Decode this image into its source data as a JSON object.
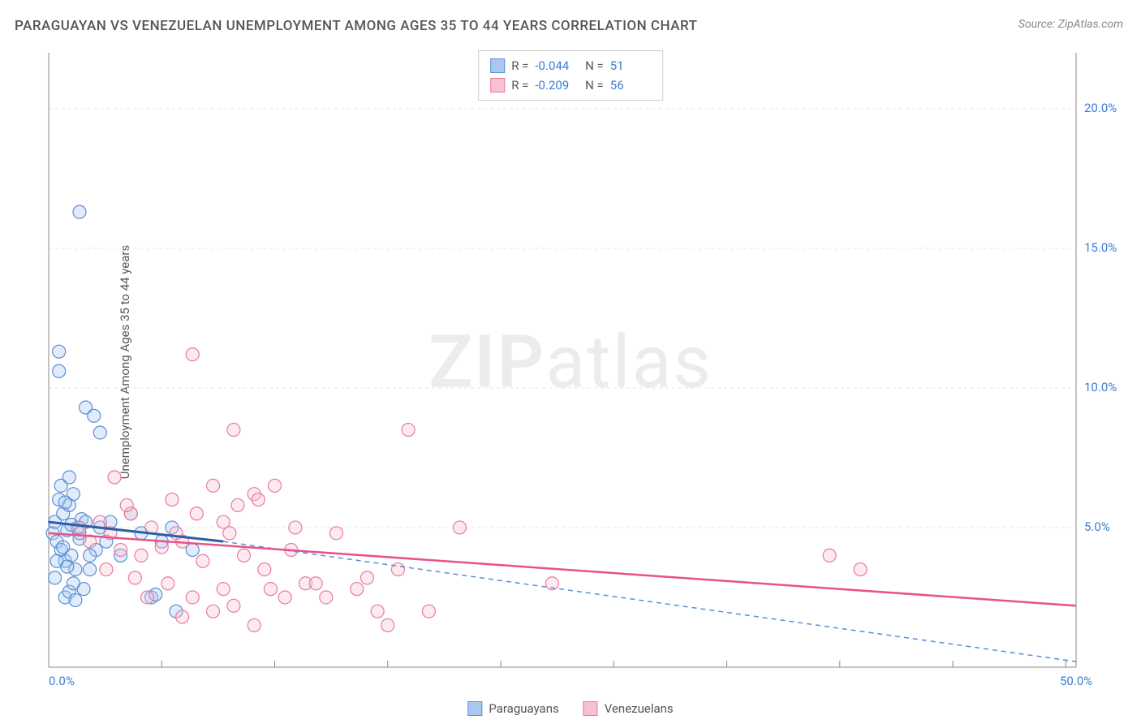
{
  "title": "PARAGUAYAN VS VENEZUELAN UNEMPLOYMENT AMONG AGES 35 TO 44 YEARS CORRELATION CHART",
  "source": "Source: ZipAtlas.com",
  "y_axis_label": "Unemployment Among Ages 35 to 44 years",
  "watermark_bold": "ZIP",
  "watermark_light": "atlas",
  "chart": {
    "type": "scatter",
    "background_color": "#ffffff",
    "grid_color": "#e5e5e5",
    "axis_color": "#888888",
    "xlim": [
      0,
      50
    ],
    "ylim": [
      0,
      22
    ],
    "x_ticks": [
      0,
      50
    ],
    "x_tick_labels": [
      "0.0%",
      "50.0%"
    ],
    "y_ticks": [
      5,
      10,
      15,
      20
    ],
    "y_tick_labels": [
      "5.0%",
      "10.0%",
      "15.0%",
      "20.0%"
    ],
    "x_grid_positions": [
      5.5,
      11,
      16.5,
      22,
      27.5,
      33,
      38.5,
      44,
      49.5
    ],
    "marker_radius": 8,
    "marker_fill_opacity": 0.35,
    "marker_stroke_width": 1.2,
    "series": [
      {
        "name": "Paraguayans",
        "color_fill": "#a8c8f0",
        "color_stroke": "#5a8fd6",
        "R": "-0.044",
        "N": "51",
        "regression": {
          "x1": 0,
          "y1": 5.2,
          "x2": 8.5,
          "y2": 4.5,
          "solid_color": "#2d5fa8",
          "dash_extend_to_x": 50,
          "dash_extend_to_y": 0.2,
          "dash_color": "#5a8fd6"
        },
        "points": [
          [
            0.2,
            4.8
          ],
          [
            0.3,
            5.2
          ],
          [
            0.4,
            4.5
          ],
          [
            0.5,
            6.0
          ],
          [
            0.6,
            4.2
          ],
          [
            0.7,
            5.5
          ],
          [
            0.8,
            3.8
          ],
          [
            0.9,
            4.9
          ],
          [
            1.0,
            5.8
          ],
          [
            1.1,
            4.0
          ],
          [
            1.2,
            6.2
          ],
          [
            1.3,
            3.5
          ],
          [
            1.4,
            5.0
          ],
          [
            1.5,
            4.6
          ],
          [
            1.6,
            5.3
          ],
          [
            0.5,
            11.3
          ],
          [
            0.5,
            10.6
          ],
          [
            1.5,
            16.3
          ],
          [
            1.8,
            9.3
          ],
          [
            2.5,
            8.4
          ],
          [
            2.2,
            9.0
          ],
          [
            0.8,
            2.5
          ],
          [
            1.0,
            2.7
          ],
          [
            1.3,
            2.4
          ],
          [
            1.7,
            2.8
          ],
          [
            2.0,
            3.5
          ],
          [
            2.3,
            4.2
          ],
          [
            2.5,
            5.0
          ],
          [
            2.8,
            4.5
          ],
          [
            3.0,
            5.2
          ],
          [
            3.5,
            4.0
          ],
          [
            4.0,
            5.5
          ],
          [
            4.5,
            4.8
          ],
          [
            5.0,
            2.5
          ],
          [
            5.2,
            2.6
          ],
          [
            5.5,
            4.5
          ],
          [
            6.0,
            5.0
          ],
          [
            6.2,
            2.0
          ],
          [
            7.0,
            4.2
          ],
          [
            0.3,
            3.2
          ],
          [
            0.4,
            3.8
          ],
          [
            0.6,
            6.5
          ],
          [
            0.8,
            5.9
          ],
          [
            1.0,
            6.8
          ],
          [
            1.2,
            3.0
          ],
          [
            1.5,
            4.8
          ],
          [
            1.8,
            5.2
          ],
          [
            2.0,
            4.0
          ],
          [
            0.7,
            4.3
          ],
          [
            0.9,
            3.6
          ],
          [
            1.1,
            5.1
          ]
        ]
      },
      {
        "name": "Venezuelans",
        "color_fill": "#f5c2d0",
        "color_stroke": "#e87ba0",
        "R": "-0.209",
        "N": "56",
        "regression": {
          "x1": 0,
          "y1": 4.8,
          "x2": 50,
          "y2": 2.2,
          "solid_color": "#e8518a"
        },
        "points": [
          [
            1.5,
            5.0
          ],
          [
            2.0,
            4.5
          ],
          [
            2.5,
            5.2
          ],
          [
            3.0,
            4.8
          ],
          [
            3.5,
            4.2
          ],
          [
            4.0,
            5.5
          ],
          [
            4.5,
            4.0
          ],
          [
            5.0,
            5.0
          ],
          [
            5.5,
            4.3
          ],
          [
            6.0,
            6.0
          ],
          [
            6.5,
            4.5
          ],
          [
            7.0,
            11.2
          ],
          [
            7.5,
            3.8
          ],
          [
            8.0,
            6.5
          ],
          [
            8.5,
            5.2
          ],
          [
            9.0,
            8.5
          ],
          [
            9.5,
            4.0
          ],
          [
            10.0,
            6.2
          ],
          [
            10.2,
            6.0
          ],
          [
            10.5,
            3.5
          ],
          [
            11.0,
            6.5
          ],
          [
            11.5,
            2.5
          ],
          [
            12.0,
            5.0
          ],
          [
            12.5,
            3.0
          ],
          [
            8.0,
            2.0
          ],
          [
            8.5,
            2.8
          ],
          [
            9.0,
            2.2
          ],
          [
            7.0,
            2.5
          ],
          [
            6.5,
            1.8
          ],
          [
            10.0,
            1.5
          ],
          [
            13.0,
            3.0
          ],
          [
            14.0,
            4.8
          ],
          [
            15.0,
            2.8
          ],
          [
            15.5,
            3.2
          ],
          [
            16.0,
            2.0
          ],
          [
            16.5,
            1.5
          ],
          [
            17.0,
            3.5
          ],
          [
            17.5,
            8.5
          ],
          [
            18.5,
            2.0
          ],
          [
            20.0,
            5.0
          ],
          [
            24.5,
            3.0
          ],
          [
            38.0,
            4.0
          ],
          [
            39.5,
            3.5
          ],
          [
            3.2,
            6.8
          ],
          [
            4.2,
            3.2
          ],
          [
            5.8,
            3.0
          ],
          [
            2.8,
            3.5
          ],
          [
            3.8,
            5.8
          ],
          [
            4.8,
            2.5
          ],
          [
            6.2,
            4.8
          ],
          [
            7.2,
            5.5
          ],
          [
            8.8,
            4.8
          ],
          [
            11.8,
            4.2
          ],
          [
            13.5,
            2.5
          ],
          [
            9.2,
            5.8
          ],
          [
            10.8,
            2.8
          ]
        ]
      }
    ]
  },
  "legend": {
    "items": [
      {
        "label": "Paraguayans",
        "fill": "#a8c8f0",
        "stroke": "#5a8fd6"
      },
      {
        "label": "Venezuelans",
        "fill": "#f5c2d0",
        "stroke": "#e87ba0"
      }
    ]
  }
}
